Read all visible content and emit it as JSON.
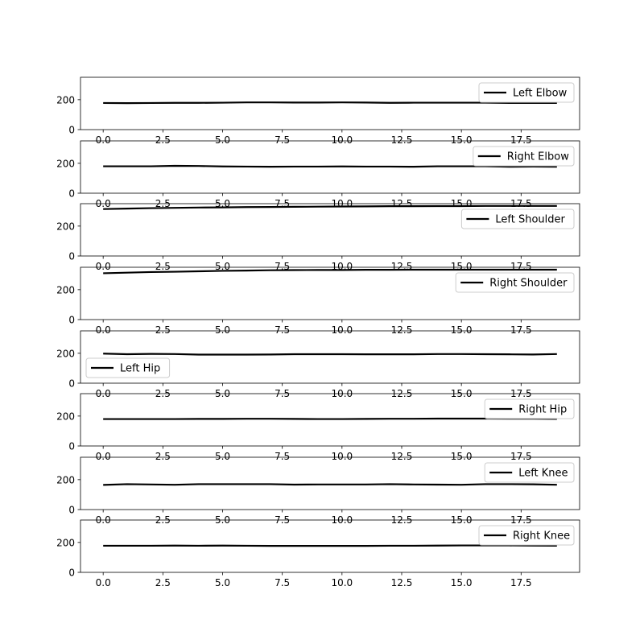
{
  "chart_data": [
    {
      "type": "line",
      "xlim": [
        -0.95,
        19.95
      ],
      "ylim": [
        0,
        350
      ],
      "x_ticks": [
        0.0,
        2.5,
        5.0,
        7.5,
        10.0,
        12.5,
        15.0,
        17.5
      ],
      "x_tick_labels": [
        "0.0",
        "2.5",
        "5.0",
        "7.5",
        "10.0",
        "12.5",
        "15.0",
        "17.5"
      ],
      "y_ticks": [
        0,
        200
      ],
      "y_tick_labels": [
        "0",
        "200"
      ],
      "legend_position": "right",
      "line_color": "#000000",
      "series": [
        {
          "name": "Left Elbow",
          "x": [
            0,
            1,
            2,
            3,
            4,
            5,
            6,
            7,
            8,
            9,
            10,
            11,
            12,
            13,
            14,
            15,
            16,
            17,
            18,
            19
          ],
          "values": [
            178,
            177,
            178,
            179,
            179,
            180,
            182,
            182,
            181,
            181,
            182,
            181,
            179,
            180,
            180,
            180,
            180,
            178,
            178,
            178
          ]
        }
      ]
    },
    {
      "type": "line",
      "xlim": [
        -0.95,
        19.95
      ],
      "ylim": [
        0,
        350
      ],
      "x_ticks": [
        0.0,
        2.5,
        5.0,
        7.5,
        10.0,
        12.5,
        15.0,
        17.5
      ],
      "x_tick_labels": [
        "0.0",
        "2.5",
        "5.0",
        "7.5",
        "10.0",
        "12.5",
        "15.0",
        "17.5"
      ],
      "y_ticks": [
        0,
        200
      ],
      "y_tick_labels": [
        "0",
        "200"
      ],
      "legend_position": "right",
      "line_color": "#000000",
      "series": [
        {
          "name": "Right Elbow",
          "x": [
            0,
            1,
            2,
            3,
            4,
            5,
            6,
            7,
            8,
            9,
            10,
            11,
            12,
            13,
            14,
            15,
            16,
            17,
            18,
            19
          ],
          "values": [
            180,
            180,
            180,
            183,
            182,
            179,
            178,
            177,
            178,
            178,
            179,
            178,
            178,
            177,
            180,
            180,
            180,
            177,
            178,
            177
          ]
        }
      ]
    },
    {
      "type": "line",
      "xlim": [
        -0.95,
        19.95
      ],
      "ylim": [
        0,
        350
      ],
      "x_ticks": [
        0.0,
        2.5,
        5.0,
        7.5,
        10.0,
        12.5,
        15.0,
        17.5
      ],
      "x_tick_labels": [
        "0.0",
        "2.5",
        "5.0",
        "7.5",
        "10.0",
        "12.5",
        "15.0",
        "17.5"
      ],
      "y_ticks": [
        0,
        200
      ],
      "y_tick_labels": [
        "0",
        "200"
      ],
      "legend_position": "right",
      "line_color": "#000000",
      "series": [
        {
          "name": "Left Shoulder",
          "x": [
            0,
            1,
            2,
            3,
            4,
            5,
            6,
            7,
            8,
            9,
            10,
            11,
            12,
            13,
            14,
            15,
            16,
            17,
            18,
            19
          ],
          "values": [
            314,
            317,
            320,
            322,
            324,
            325,
            327,
            328,
            329,
            330,
            331,
            332,
            333,
            333,
            334,
            334,
            335,
            335,
            335,
            335
          ]
        }
      ]
    },
    {
      "type": "line",
      "xlim": [
        -0.95,
        19.95
      ],
      "ylim": [
        0,
        350
      ],
      "x_ticks": [
        0.0,
        2.5,
        5.0,
        7.5,
        10.0,
        12.5,
        15.0,
        17.5
      ],
      "x_tick_labels": [
        "0.0",
        "2.5",
        "5.0",
        "7.5",
        "10.0",
        "12.5",
        "15.0",
        "17.5"
      ],
      "y_ticks": [
        0,
        200
      ],
      "y_tick_labels": [
        "0",
        "200"
      ],
      "legend_position": "right",
      "line_color": "#000000",
      "series": [
        {
          "name": "Right Shoulder",
          "x": [
            0,
            1,
            2,
            3,
            4,
            5,
            6,
            7,
            8,
            9,
            10,
            11,
            12,
            13,
            14,
            15,
            16,
            17,
            18,
            19
          ],
          "values": [
            310,
            314,
            318,
            320,
            323,
            326,
            328,
            330,
            331,
            332,
            332,
            333,
            333,
            334,
            334,
            334,
            334,
            334,
            334,
            334
          ]
        }
      ]
    },
    {
      "type": "line",
      "xlim": [
        -0.95,
        19.95
      ],
      "ylim": [
        0,
        350
      ],
      "x_ticks": [
        0.0,
        2.5,
        5.0,
        7.5,
        10.0,
        12.5,
        15.0,
        17.5
      ],
      "x_tick_labels": [
        "0.0",
        "2.5",
        "5.0",
        "7.5",
        "10.0",
        "12.5",
        "15.0",
        "17.5"
      ],
      "y_ticks": [
        0,
        200
      ],
      "y_tick_labels": [
        "0",
        "200"
      ],
      "legend_position": "left",
      "line_color": "#000000",
      "series": [
        {
          "name": "Left Hip",
          "x": [
            0,
            1,
            2,
            3,
            4,
            5,
            6,
            7,
            8,
            9,
            10,
            11,
            12,
            13,
            14,
            15,
            16,
            17,
            18,
            19
          ],
          "values": [
            198,
            194,
            196,
            195,
            191,
            191,
            191,
            192,
            194,
            194,
            194,
            193,
            193,
            193,
            195,
            195,
            194,
            193,
            192,
            195
          ]
        }
      ]
    },
    {
      "type": "line",
      "xlim": [
        -0.95,
        19.95
      ],
      "ylim": [
        0,
        350
      ],
      "x_ticks": [
        0.0,
        2.5,
        5.0,
        7.5,
        10.0,
        12.5,
        15.0,
        17.5
      ],
      "x_tick_labels": [
        "0.0",
        "2.5",
        "5.0",
        "7.5",
        "10.0",
        "12.5",
        "15.0",
        "17.5"
      ],
      "y_ticks": [
        0,
        200
      ],
      "y_tick_labels": [
        "0",
        "200"
      ],
      "legend_position": "right",
      "line_color": "#000000",
      "series": [
        {
          "name": "Right Hip",
          "x": [
            0,
            1,
            2,
            3,
            4,
            5,
            6,
            7,
            8,
            9,
            10,
            11,
            12,
            13,
            14,
            15,
            16,
            17,
            18,
            19
          ],
          "values": [
            180,
            180,
            180,
            180,
            181,
            181,
            182,
            182,
            181,
            180,
            180,
            181,
            182,
            182,
            183,
            183,
            183,
            182,
            182,
            181
          ]
        }
      ]
    },
    {
      "type": "line",
      "xlim": [
        -0.95,
        19.95
      ],
      "ylim": [
        0,
        350
      ],
      "x_ticks": [
        0.0,
        2.5,
        5.0,
        7.5,
        10.0,
        12.5,
        15.0,
        17.5
      ],
      "x_tick_labels": [
        "0.0",
        "2.5",
        "5.0",
        "7.5",
        "10.0",
        "12.5",
        "15.0",
        "17.5"
      ],
      "y_ticks": [
        0,
        200
      ],
      "y_tick_labels": [
        "0",
        "200"
      ],
      "legend_position": "right",
      "line_color": "#000000",
      "series": [
        {
          "name": "Left Knee",
          "x": [
            0,
            1,
            2,
            3,
            4,
            5,
            6,
            7,
            8,
            9,
            10,
            11,
            12,
            13,
            14,
            15,
            16,
            17,
            18,
            19
          ],
          "values": [
            165,
            170,
            168,
            166,
            170,
            170,
            170,
            170,
            167,
            168,
            168,
            168,
            170,
            168,
            167,
            166,
            170,
            170,
            169,
            166
          ]
        }
      ]
    },
    {
      "type": "line",
      "xlim": [
        -0.95,
        19.95
      ],
      "ylim": [
        0,
        350
      ],
      "x_ticks": [
        0.0,
        2.5,
        5.0,
        7.5,
        10.0,
        12.5,
        15.0,
        17.5
      ],
      "x_tick_labels": [
        "0.0",
        "2.5",
        "5.0",
        "7.5",
        "10.0",
        "12.5",
        "15.0",
        "17.5"
      ],
      "y_ticks": [
        0,
        200
      ],
      "y_tick_labels": [
        "0",
        "200"
      ],
      "legend_position": "right",
      "line_color": "#000000",
      "series": [
        {
          "name": "Right Knee",
          "x": [
            0,
            1,
            2,
            3,
            4,
            5,
            6,
            7,
            8,
            9,
            10,
            11,
            12,
            13,
            14,
            15,
            16,
            17,
            18,
            19
          ],
          "values": [
            178,
            178,
            178,
            179,
            178,
            179,
            178,
            177,
            177,
            177,
            177,
            177,
            178,
            178,
            179,
            180,
            180,
            180,
            179,
            178
          ]
        }
      ]
    }
  ]
}
